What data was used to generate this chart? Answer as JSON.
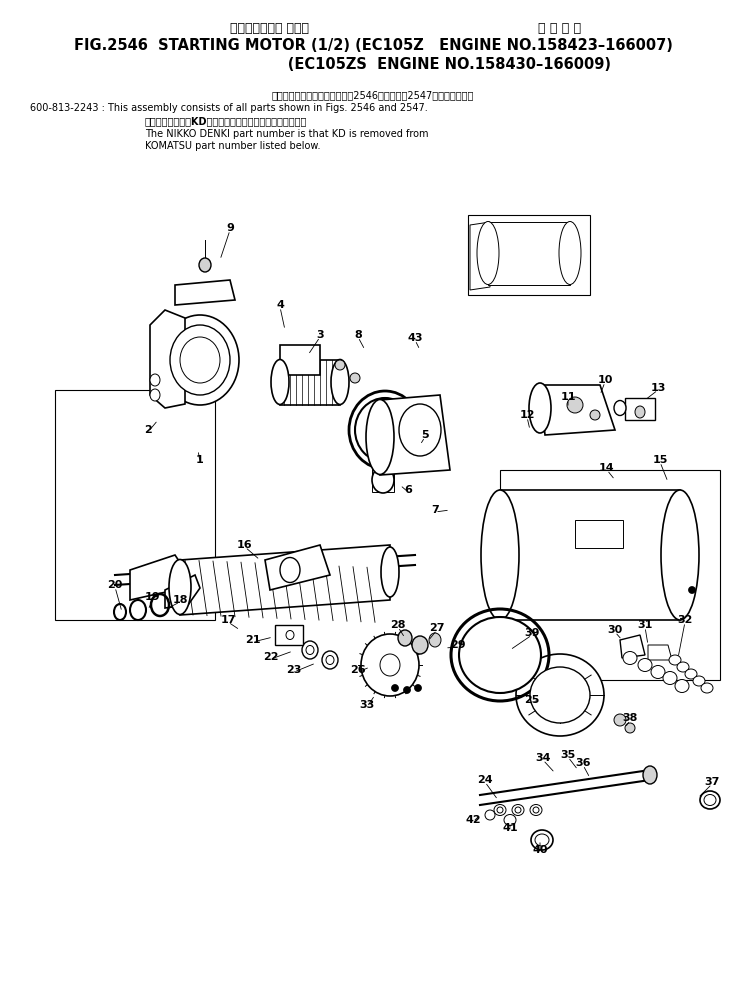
{
  "title_jp1": "スターティング モータ",
  "title_jp2": "通 用 号 機",
  "title_line1": "FIG.2546  STARTING MOTOR (1/2) (EC105Z   ENGINE NO.158423–166007)",
  "title_line2": "                              (EC105ZS  ENGINE NO.158430–166009)",
  "note_jp": "このアセンブリの構成部品は第2546図および第2547図を含みます。",
  "note_en1": "600-813-2243 : This assembly consists of all parts shown in Figs. 2546 and 2547.",
  "note_jp2": "品番のメーカ記号KDを抜いたものが日興電機の品番です。",
  "note_en2": "The NIKKO DENKI part number is that KD is removed from",
  "note_en3": "KOMATSU part number listed below.",
  "bg": "#ffffff"
}
